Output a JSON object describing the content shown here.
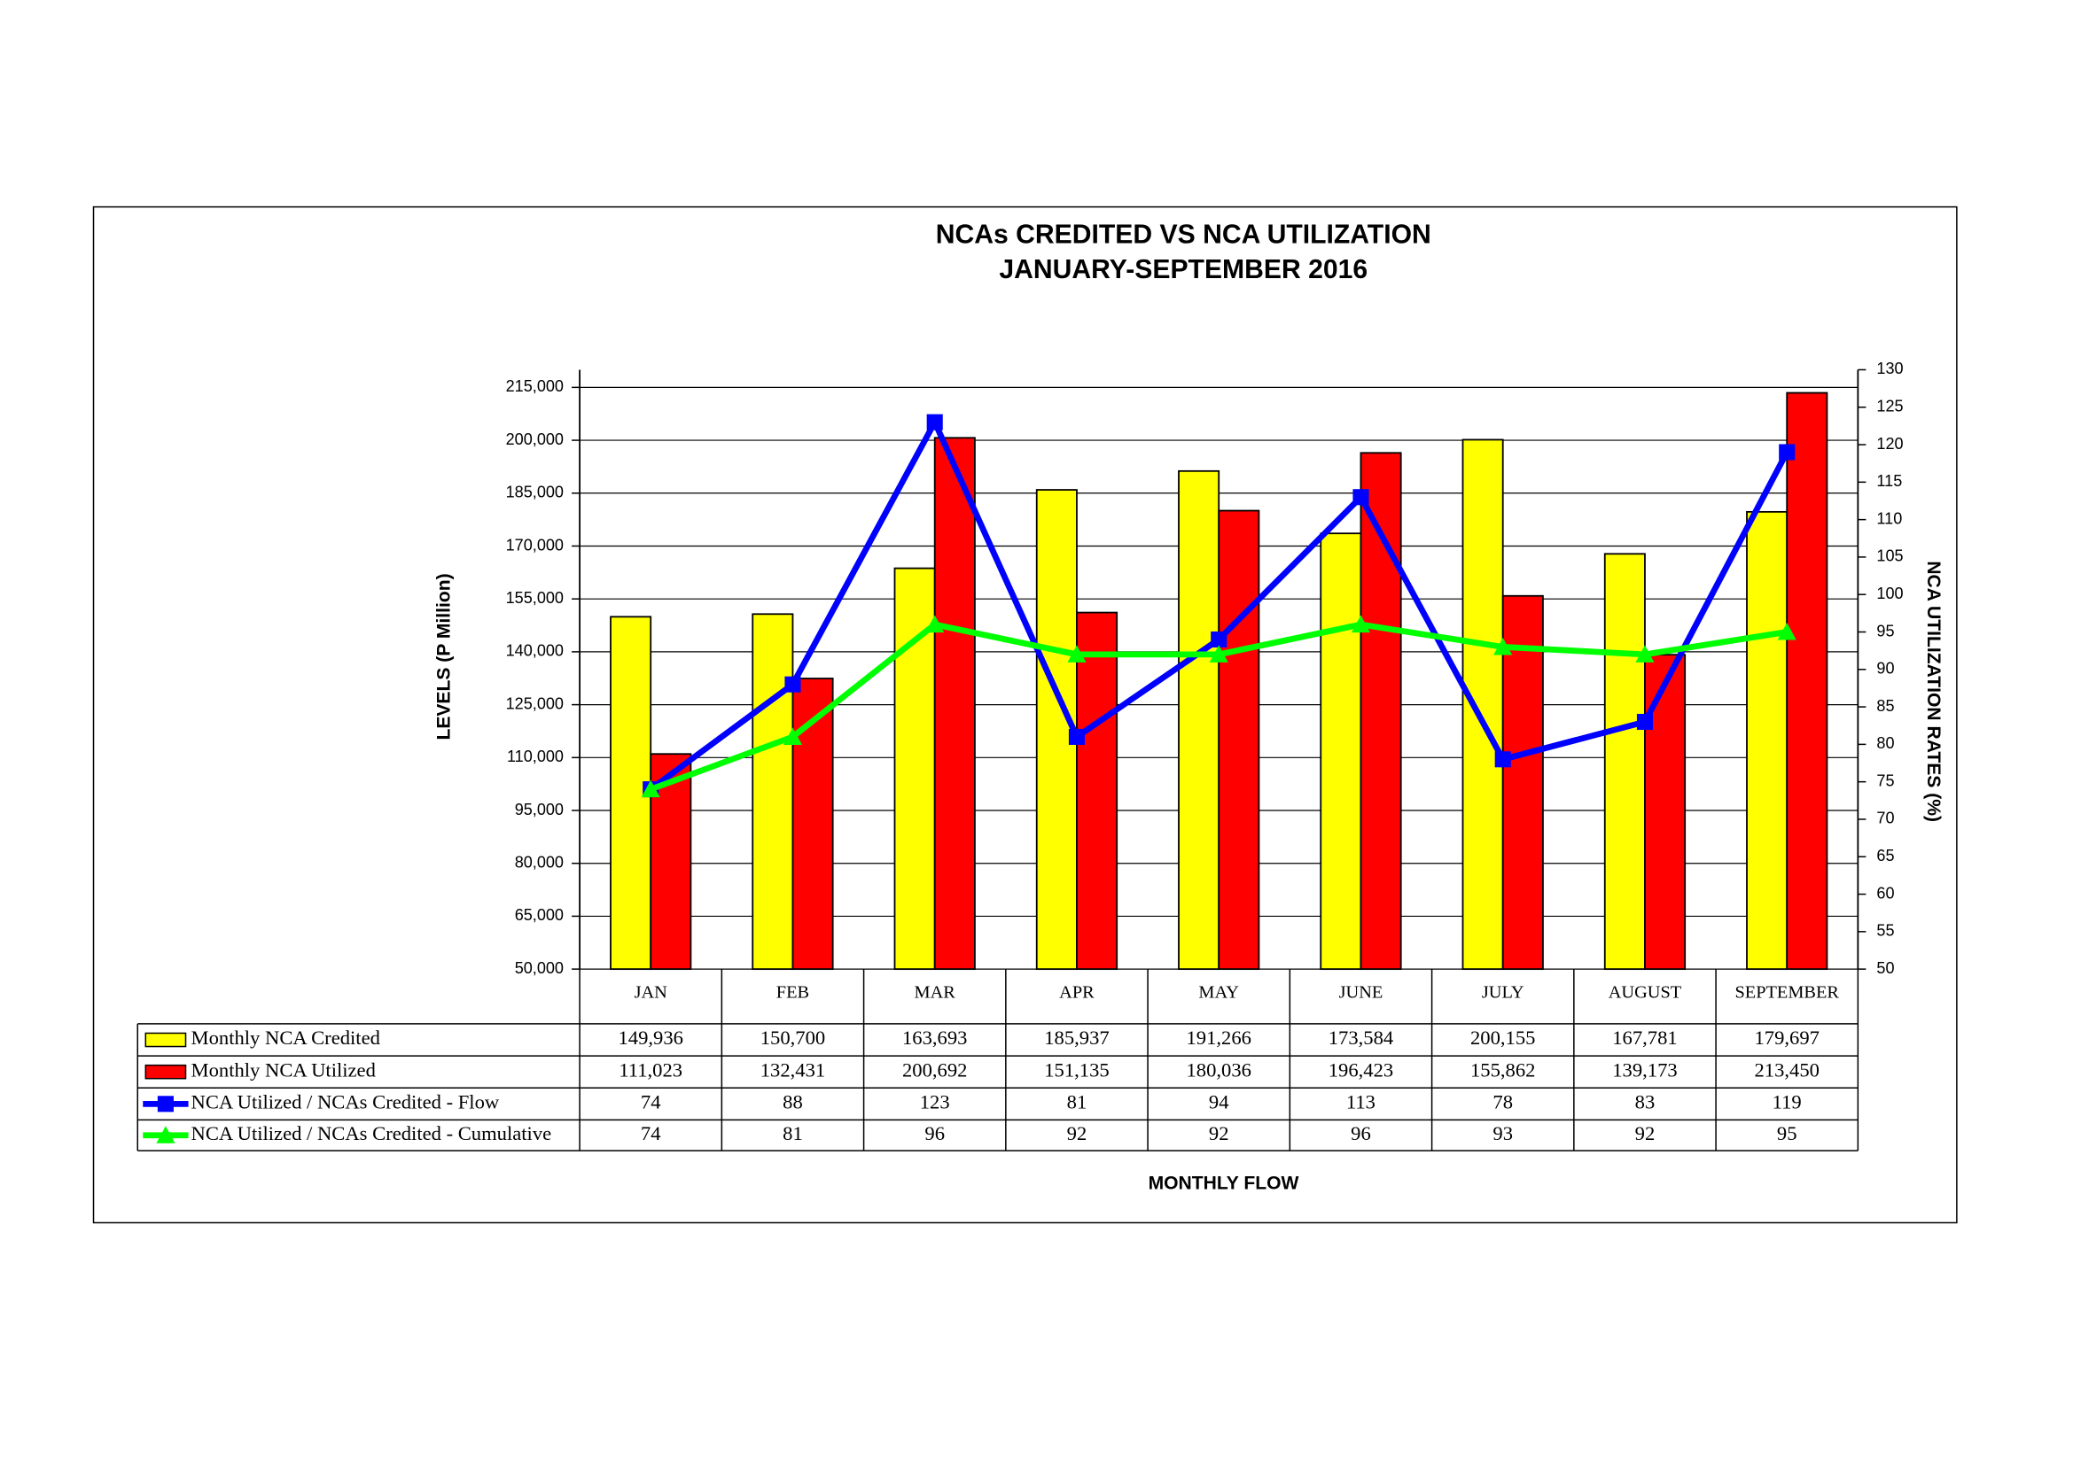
{
  "chart_data": {
    "type": "bar_line_table",
    "title": "NCAs CREDITED VS NCA UTILIZATION",
    "subtitle": "JANUARY-SEPTEMBER 2016",
    "y_label": "LEVELS (P Million)",
    "y2_label": "NCA UTILIZATION RATES (%)",
    "x_label": "MONTHLY FLOW",
    "categories": [
      "JAN",
      "FEB",
      "MAR",
      "APR",
      "MAY",
      "JUNE",
      "JULY",
      "AUGUST",
      "SEPTEMBER"
    ],
    "ylim": [
      50000,
      220000
    ],
    "yticks": [
      {
        "value": 50000,
        "label": "50,000"
      },
      {
        "value": 65000,
        "label": "65,000"
      },
      {
        "value": 80000,
        "label": "80,000"
      },
      {
        "value": 95000,
        "label": "95,000"
      },
      {
        "value": 110000,
        "label": "110,000"
      },
      {
        "value": 125000,
        "label": "125,000"
      },
      {
        "value": 140000,
        "label": "140,000"
      },
      {
        "value": 155000,
        "label": "155,000"
      },
      {
        "value": 170000,
        "label": "170,000"
      },
      {
        "value": 185000,
        "label": "185,000"
      },
      {
        "value": 200000,
        "label": "200,000"
      },
      {
        "value": 215000,
        "label": "215,000"
      }
    ],
    "y2lim": [
      50,
      130
    ],
    "y2ticks": [
      50,
      55,
      60,
      65,
      70,
      75,
      80,
      85,
      90,
      95,
      100,
      105,
      110,
      115,
      120,
      125,
      130
    ],
    "grid": true,
    "series": [
      {
        "name": "Monthly NCA Credited",
        "type": "bar",
        "color": "#ffff00",
        "values": [
          149936,
          150700,
          163693,
          185937,
          191266,
          173584,
          200155,
          167781,
          179697
        ],
        "value_labels": [
          "149,936",
          "150,700",
          "163,693",
          "185,937",
          "191,266",
          "173,584",
          "200,155",
          "167,781",
          "179,697"
        ]
      },
      {
        "name": "Monthly NCA Utilized",
        "type": "bar",
        "color": "#ff0000",
        "values": [
          111023,
          132431,
          200692,
          151135,
          180036,
          196423,
          155862,
          139173,
          213450
        ],
        "value_labels": [
          "111,023",
          "132,431",
          "200,692",
          "151,135",
          "180,036",
          "196,423",
          "155,862",
          "139,173",
          "213,450"
        ]
      },
      {
        "name": "NCA Utilized / NCAs Credited - Flow",
        "type": "line",
        "axis": "y2",
        "color": "#0000ff",
        "marker": "square",
        "values": [
          74,
          88,
          123,
          81,
          94,
          113,
          78,
          83,
          119
        ]
      },
      {
        "name": "NCA Utilized / NCAs Credited - Cumulative",
        "type": "line",
        "axis": "y2",
        "color": "#00ff00",
        "marker": "triangle",
        "values": [
          74,
          81,
          96,
          92,
          92,
          96,
          93,
          92,
          95
        ]
      }
    ]
  }
}
